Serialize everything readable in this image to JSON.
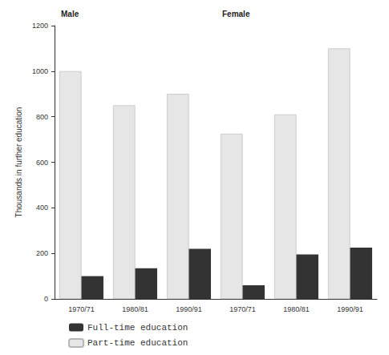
{
  "chart_data": {
    "type": "bar",
    "y_label": "Thousands in further education",
    "categories": [
      "1970/71",
      "1980/81",
      "1990/91",
      "1970/71",
      "1980/81",
      "1990/91"
    ],
    "groups": [
      {
        "label": "Male",
        "size": 3
      },
      {
        "label": "Female",
        "size": 3
      }
    ],
    "series": [
      {
        "name": "Full-time education",
        "color": "#333333",
        "values": [
          100,
          135,
          220,
          60,
          195,
          225
        ]
      },
      {
        "name": "Part-time education",
        "color": "#e6e6e6",
        "values": [
          1000,
          850,
          900,
          725,
          810,
          1100
        ]
      }
    ],
    "ylim": [
      0,
      1200
    ],
    "yticks": [
      0,
      200,
      400,
      600,
      800,
      1000,
      1200
    ],
    "grid": false,
    "legend": "bottom-left"
  }
}
